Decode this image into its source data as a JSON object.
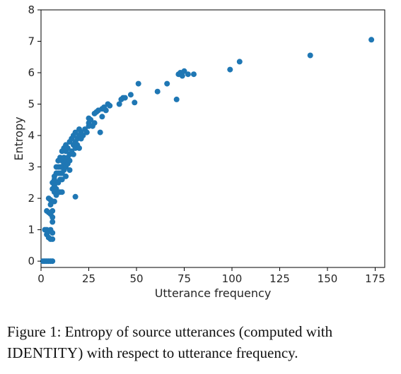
{
  "chart_data": {
    "type": "scatter",
    "xlabel": "Utterance frequency",
    "ylabel": "Entropy",
    "xlim": [
      0,
      180
    ],
    "ylim": [
      -0.2,
      8
    ],
    "xticks": [
      "0",
      "25",
      "50",
      "75",
      "100",
      "125",
      "150",
      "175"
    ],
    "yticks": [
      "0",
      "1",
      "2",
      "3",
      "4",
      "5",
      "6",
      "7",
      "8"
    ],
    "grid": false,
    "legend": "none",
    "color": "#1f77b4",
    "points": [
      [
        1,
        0
      ],
      [
        2,
        0
      ],
      [
        3,
        0
      ],
      [
        4,
        0
      ],
      [
        5,
        0
      ],
      [
        6,
        0
      ],
      [
        2,
        1.0
      ],
      [
        3,
        1.0
      ],
      [
        3,
        0.85
      ],
      [
        4,
        0.95
      ],
      [
        4,
        0.75
      ],
      [
        5,
        1.0
      ],
      [
        5,
        0.7
      ],
      [
        6,
        0.9
      ],
      [
        6,
        0.7
      ],
      [
        3,
        1.6
      ],
      [
        4,
        1.55
      ],
      [
        4,
        2.0
      ],
      [
        5,
        1.5
      ],
      [
        5,
        1.95
      ],
      [
        5,
        1.8
      ],
      [
        6,
        1.4
      ],
      [
        6,
        1.6
      ],
      [
        6,
        1.25
      ],
      [
        6,
        1.9
      ],
      [
        6,
        2.3
      ],
      [
        6,
        2.5
      ],
      [
        7,
        2.2
      ],
      [
        7,
        2.6
      ],
      [
        7,
        1.9
      ],
      [
        7,
        2.7
      ],
      [
        7,
        2.4
      ],
      [
        8,
        2.3
      ],
      [
        8,
        2.8
      ],
      [
        8,
        2.1
      ],
      [
        8,
        2.5
      ],
      [
        8,
        3.0
      ],
      [
        9,
        2.5
      ],
      [
        9,
        3.2
      ],
      [
        9,
        2.2
      ],
      [
        9,
        2.8
      ],
      [
        9,
        3.0
      ],
      [
        10,
        2.2
      ],
      [
        10,
        2.6
      ],
      [
        10,
        3.0
      ],
      [
        10,
        3.3
      ],
      [
        10,
        2.8
      ],
      [
        11,
        2.8
      ],
      [
        11,
        3.2
      ],
      [
        11,
        3.5
      ],
      [
        11,
        2.6
      ],
      [
        11,
        3.0
      ],
      [
        11,
        2.2
      ],
      [
        12,
        2.9
      ],
      [
        12,
        3.3
      ],
      [
        12,
        3.6
      ],
      [
        12,
        3.1
      ],
      [
        13,
        3.0
      ],
      [
        13,
        3.5
      ],
      [
        13,
        3.2
      ],
      [
        13,
        2.7
      ],
      [
        13,
        3.7
      ],
      [
        14,
        3.3
      ],
      [
        14,
        3.6
      ],
      [
        14,
        3.1
      ],
      [
        15,
        3.4
      ],
      [
        15,
        3.8
      ],
      [
        15,
        3.2
      ],
      [
        15,
        2.9
      ],
      [
        16,
        3.5
      ],
      [
        16,
        3.9
      ],
      [
        17,
        3.7
      ],
      [
        17,
        4.0
      ],
      [
        17,
        3.4
      ],
      [
        18,
        3.8
      ],
      [
        18,
        4.1
      ],
      [
        18,
        2.05
      ],
      [
        18,
        3.6
      ],
      [
        19,
        3.9
      ],
      [
        19,
        3.7
      ],
      [
        20,
        4.0
      ],
      [
        20,
        3.6
      ],
      [
        20,
        4.2
      ],
      [
        21,
        3.9
      ],
      [
        21,
        4.1
      ],
      [
        22,
        4.0
      ],
      [
        23,
        4.2
      ],
      [
        24,
        4.1
      ],
      [
        25,
        4.4
      ],
      [
        25,
        4.55
      ],
      [
        25,
        4.3
      ],
      [
        26,
        4.5
      ],
      [
        27,
        4.3
      ],
      [
        28,
        4.7
      ],
      [
        28,
        4.4
      ],
      [
        29,
        4.75
      ],
      [
        30,
        4.8
      ],
      [
        31,
        4.1
      ],
      [
        32,
        4.6
      ],
      [
        32,
        4.85
      ],
      [
        33,
        4.9
      ],
      [
        34,
        4.8
      ],
      [
        35,
        5.0
      ],
      [
        36,
        4.95
      ],
      [
        41,
        5.0
      ],
      [
        42,
        5.15
      ],
      [
        43,
        5.2
      ],
      [
        44,
        5.2
      ],
      [
        47,
        5.3
      ],
      [
        49,
        5.05
      ],
      [
        51,
        5.65
      ],
      [
        61,
        5.4
      ],
      [
        66,
        5.65
      ],
      [
        71,
        5.15
      ],
      [
        72,
        5.95
      ],
      [
        73,
        6.0
      ],
      [
        74,
        5.9
      ],
      [
        75,
        6.05
      ],
      [
        77,
        5.95
      ],
      [
        80,
        5.95
      ],
      [
        99,
        6.1
      ],
      [
        104,
        6.35
      ],
      [
        141,
        6.55
      ],
      [
        173,
        7.05
      ]
    ]
  },
  "caption": {
    "prefix": "Figure 1: Entropy of source utterances (computed with ",
    "smallcaps": "IDENTITY",
    "suffix": ") with respect to utterance frequency."
  }
}
